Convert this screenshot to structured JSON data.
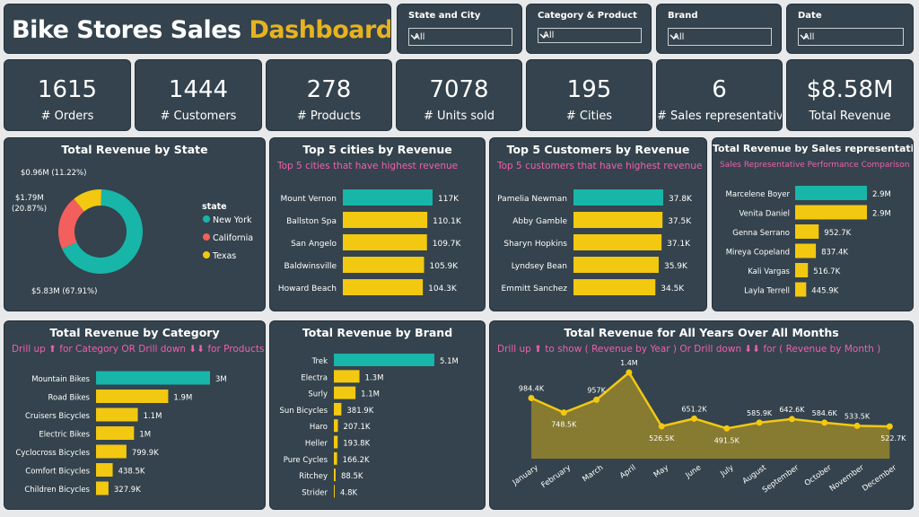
{
  "header": {
    "title_white": "Bike Stores Sales",
    "title_yellow": "Dashboard"
  },
  "slicers": [
    {
      "label": "State and City",
      "value": "All"
    },
    {
      "label": "Category & Product",
      "value": "All"
    },
    {
      "label": "Brand",
      "value": "All"
    },
    {
      "label": "Date",
      "value": "All"
    }
  ],
  "kpis": [
    {
      "value": "1615",
      "label": "# Orders"
    },
    {
      "value": "1444",
      "label": "# Customers"
    },
    {
      "value": "278",
      "label": "# Products"
    },
    {
      "value": "7078",
      "label": "# Units sold"
    },
    {
      "value": "195",
      "label": "# Cities"
    },
    {
      "value": "6",
      "label": "# Sales representative"
    },
    {
      "value": "$8.58M",
      "label": "Total Revenue"
    }
  ],
  "colors": {
    "accent": "#18b5a9",
    "bar": "#f2c811",
    "pink": "#f05fb0",
    "red": "#f25f5c",
    "area": "#8c7d2f",
    "line": "#f2c811"
  },
  "panels": {
    "state": {
      "title": "Total Revenue by State",
      "legend_title": "state"
    },
    "cities": {
      "title": "Top 5 cities by Revenue",
      "subtitle": "Top 5 cities that have highest revenue"
    },
    "customers": {
      "title": "Top 5 Customers by Revenue",
      "subtitle": "Top 5 customers that have highest revenue"
    },
    "reps": {
      "title": "Total Revenue by Sales representative",
      "subtitle": "Sales Representative Performance Comparison"
    },
    "category": {
      "title": "Total Revenue by Category",
      "subtitle": "Drill up ⬆ for Category OR Drill down ⬇⬇ for Products"
    },
    "brand": {
      "title": "Total Revenue by Brand"
    },
    "months": {
      "title": "Total Revenue for All Years Over All Months",
      "subtitle": "Drill up ⬆ to show ( Revenue by Year ) Or Drill down ⬇⬇ for ( Revenue by Month )"
    }
  },
  "chart_data": [
    {
      "id": "state",
      "type": "pie",
      "categories": [
        "New York",
        "California",
        "Texas"
      ],
      "values": [
        5.83,
        1.79,
        0.96
      ],
      "data_labels": [
        "$5.83M (67.91%)",
        "$1.79M (20.87%)",
        "$0.96M (11.22%)"
      ],
      "colors": [
        "#18b5a9",
        "#f25f5c",
        "#f2c811"
      ]
    },
    {
      "id": "cities",
      "type": "bar",
      "categories": [
        "Mount Vernon",
        "Ballston Spa",
        "San Angelo",
        "Baldwinsville",
        "Howard Beach"
      ],
      "values": [
        117,
        110.1,
        109.7,
        105.9,
        104.3
      ],
      "data_labels": [
        "117K",
        "110.1K",
        "109.7K",
        "105.9K",
        "104.3K"
      ]
    },
    {
      "id": "customers",
      "type": "bar",
      "categories": [
        "Pamelia Newman",
        "Abby Gamble",
        "Sharyn Hopkins",
        "Lyndsey Bean",
        "Emmitt Sanchez"
      ],
      "values": [
        37.8,
        37.5,
        37.1,
        35.9,
        34.5
      ],
      "data_labels": [
        "37.8K",
        "37.5K",
        "37.1K",
        "35.9K",
        "34.5K"
      ]
    },
    {
      "id": "reps",
      "type": "bar",
      "categories": [
        "Marcelene Boyer",
        "Venita Daniel",
        "Genna Serrano",
        "Mireya Copeland",
        "Kali Vargas",
        "Layla Terrell"
      ],
      "values": [
        2900,
        2900,
        952.7,
        837.4,
        516.7,
        445.9
      ],
      "data_labels": [
        "2.9M",
        "2.9M",
        "952.7K",
        "837.4K",
        "516.7K",
        "445.9K"
      ]
    },
    {
      "id": "category",
      "type": "bar",
      "categories": [
        "Mountain Bikes",
        "Road Bikes",
        "Cruisers Bicycles",
        "Electric Bikes",
        "Cyclocross Bicycles",
        "Comfort Bicycles",
        "Children Bicycles"
      ],
      "values": [
        3000,
        1900,
        1100,
        1000,
        799.9,
        438.5,
        327.9
      ],
      "data_labels": [
        "3M",
        "1.9M",
        "1.1M",
        "1M",
        "799.9K",
        "438.5K",
        "327.9K"
      ]
    },
    {
      "id": "brand",
      "type": "bar",
      "categories": [
        "Trek",
        "Electra",
        "Surly",
        "Sun Bicycles",
        "Haro",
        "Heller",
        "Pure Cycles",
        "Ritchey",
        "Strider"
      ],
      "values": [
        5100,
        1300,
        1100,
        381.9,
        207.1,
        193.8,
        166.2,
        88.5,
        4.8
      ],
      "data_labels": [
        "5.1M",
        "1.3M",
        "1.1M",
        "381.9K",
        "207.1K",
        "193.8K",
        "166.2K",
        "88.5K",
        "4.8K"
      ]
    },
    {
      "id": "months",
      "type": "area",
      "categories": [
        "January",
        "February",
        "March",
        "April",
        "May",
        "June",
        "July",
        "August",
        "September",
        "October",
        "November",
        "December"
      ],
      "values": [
        984.4,
        748.5,
        957,
        1400,
        526.5,
        651.2,
        491.5,
        585.9,
        642.6,
        584.6,
        533.5,
        522.7
      ],
      "data_labels": [
        "984.4K",
        "748.5K",
        "957K",
        "1.4M",
        "526.5K",
        "651.2K",
        "491.5K",
        "585.9K",
        "642.6K",
        "584.6K",
        "533.5K",
        "522.7K"
      ]
    }
  ]
}
